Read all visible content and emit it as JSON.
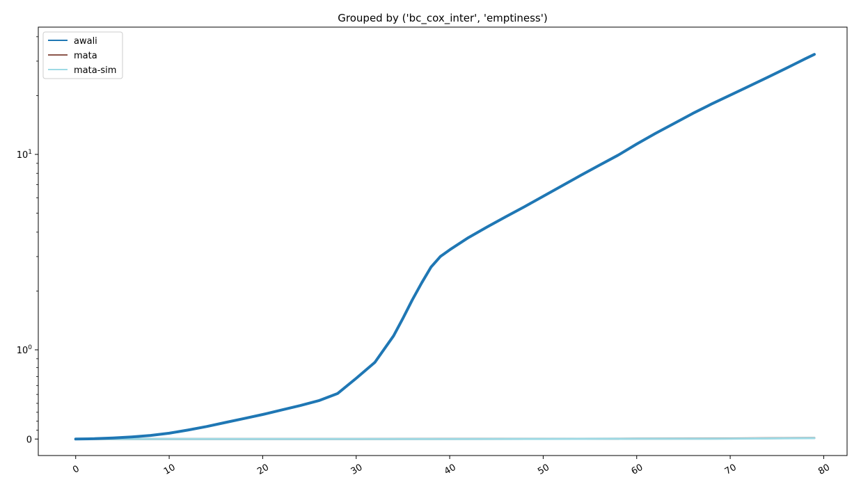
{
  "chart_data": {
    "type": "line",
    "title": "Grouped by ('bc_cox_inter', 'emptiness')",
    "xlabel": "",
    "ylabel": "",
    "y_scale": "symlog",
    "xlim": [
      -4,
      82.5
    ],
    "grid": false,
    "legend_position": "top-left",
    "x_ticks": [
      0,
      10,
      20,
      30,
      40,
      50,
      60,
      70,
      80
    ],
    "y_ticks": [
      {
        "value": 0,
        "base": "0",
        "exp": ""
      },
      {
        "value": 1,
        "base": "10",
        "exp": "0"
      },
      {
        "value": 10,
        "base": "10",
        "exp": "1"
      }
    ],
    "series": [
      {
        "name": "awali",
        "color": "#1f77b4",
        "x": [
          0,
          2,
          4,
          6,
          8,
          10,
          12,
          14,
          16,
          18,
          20,
          22,
          24,
          26,
          28,
          30,
          32,
          34,
          35,
          36,
          37,
          38,
          39,
          40,
          42,
          44,
          46,
          48,
          50,
          52,
          54,
          56,
          58,
          60,
          62,
          64,
          66,
          68,
          70,
          72,
          74,
          76,
          78,
          79
        ],
        "values": [
          0.0,
          0.004,
          0.012,
          0.024,
          0.04,
          0.065,
          0.1,
          0.14,
          0.185,
          0.23,
          0.275,
          0.325,
          0.375,
          0.43,
          0.51,
          0.68,
          0.86,
          1.18,
          1.45,
          1.8,
          2.2,
          2.65,
          3.0,
          3.25,
          3.75,
          4.25,
          4.8,
          5.4,
          6.1,
          6.9,
          7.8,
          8.8,
          9.9,
          11.3,
          12.8,
          14.4,
          16.2,
          18.1,
          20.1,
          22.3,
          24.8,
          27.6,
          30.8,
          32.5
        ]
      },
      {
        "name": "mata",
        "color": "#8c564b",
        "x": [
          0,
          10,
          20,
          30,
          40,
          50,
          60,
          70,
          79
        ],
        "values": [
          0.0,
          0.0,
          0.0,
          0.0,
          0.001,
          0.002,
          0.004,
          0.006,
          0.012
        ]
      },
      {
        "name": "mata-sim",
        "color": "#9edae5",
        "x": [
          0,
          10,
          20,
          30,
          40,
          50,
          60,
          70,
          79
        ],
        "values": [
          0.0,
          0.0,
          0.0,
          0.0,
          0.0,
          0.001,
          0.003,
          0.004,
          0.01
        ]
      }
    ]
  }
}
